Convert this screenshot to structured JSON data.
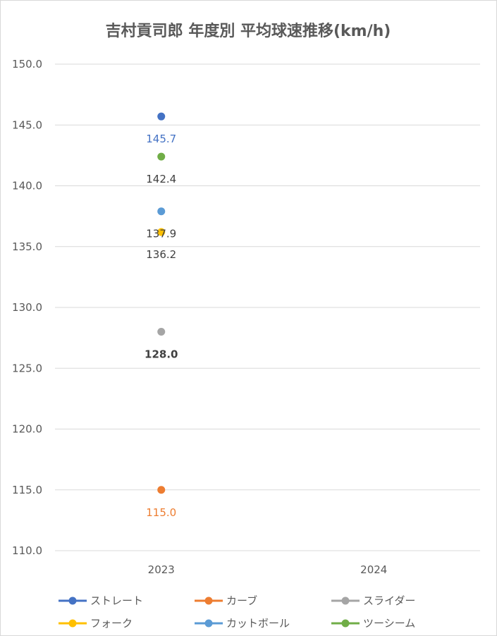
{
  "chart_data": {
    "type": "scatter",
    "title": "吉村貢司郎 年度別 平均球速推移(km/h)",
    "categories": [
      "2023",
      "2024"
    ],
    "ylim": [
      110.0,
      150.0
    ],
    "ytick_step": 5,
    "ytick_labels": [
      "150.0",
      "145.0",
      "140.0",
      "135.0",
      "130.0",
      "125.0",
      "120.0",
      "115.0",
      "110.0"
    ],
    "grid": true,
    "legend_position": "bottom",
    "series": [
      {
        "name": "ストレート",
        "color": "#4472c4",
        "values": [
          145.7,
          null
        ],
        "labels": [
          "145.7",
          ""
        ],
        "label_color": "#4472c4",
        "label_bold": false
      },
      {
        "name": "カーブ",
        "color": "#ed7d31",
        "values": [
          115.0,
          null
        ],
        "labels": [
          "115.0",
          ""
        ],
        "label_color": "#ed7d31",
        "label_bold": false
      },
      {
        "name": "スライダー",
        "color": "#a5a5a5",
        "values": [
          128.0,
          null
        ],
        "labels": [
          "128.0",
          ""
        ],
        "label_color": "#404040",
        "label_bold": true
      },
      {
        "name": "フォーク",
        "color": "#ffc000",
        "values": [
          136.2,
          null
        ],
        "labels": [
          "136.2",
          ""
        ],
        "label_color": "#404040",
        "label_bold": false
      },
      {
        "name": "カットボール",
        "color": "#5b9bd5",
        "values": [
          137.9,
          null
        ],
        "labels": [
          "137.9",
          ""
        ],
        "label_color": "#404040",
        "label_bold": false
      },
      {
        "name": "ツーシーム",
        "color": "#70ad47",
        "values": [
          142.4,
          null
        ],
        "labels": [
          "142.4",
          ""
        ],
        "label_color": "#404040",
        "label_bold": false
      }
    ]
  }
}
